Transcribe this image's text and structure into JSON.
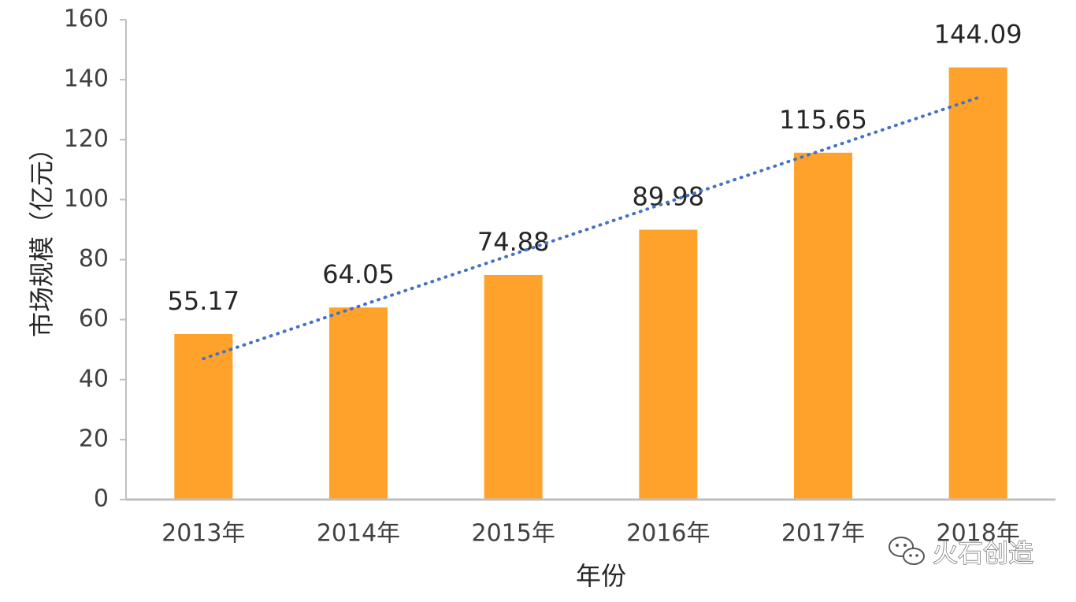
{
  "chart_data": {
    "type": "bar",
    "categories": [
      "2013年",
      "2014年",
      "2015年",
      "2016年",
      "2017年",
      "2018年"
    ],
    "values": [
      55.17,
      64.05,
      74.88,
      89.98,
      115.65,
      144.09
    ],
    "data_labels": [
      "55.17",
      "64.05",
      "74.88",
      "89.98",
      "115.65",
      "144.09"
    ],
    "xlabel": "年份",
    "ylabel": "市场规模（亿元）",
    "ylim": [
      0,
      160
    ],
    "yticks": [
      0,
      20,
      40,
      60,
      80,
      100,
      120,
      140,
      160
    ],
    "grid": false,
    "legend": "none",
    "trendline": {
      "type": "linear",
      "style": "dotted",
      "start_value": 47,
      "end_value": 134
    },
    "colors": {
      "bar": "#FFA22B",
      "trendline": "#4472C4",
      "axis": "#BFBFBF"
    }
  },
  "watermark": {
    "text": "火石创造",
    "icon": "wechat-icon"
  }
}
